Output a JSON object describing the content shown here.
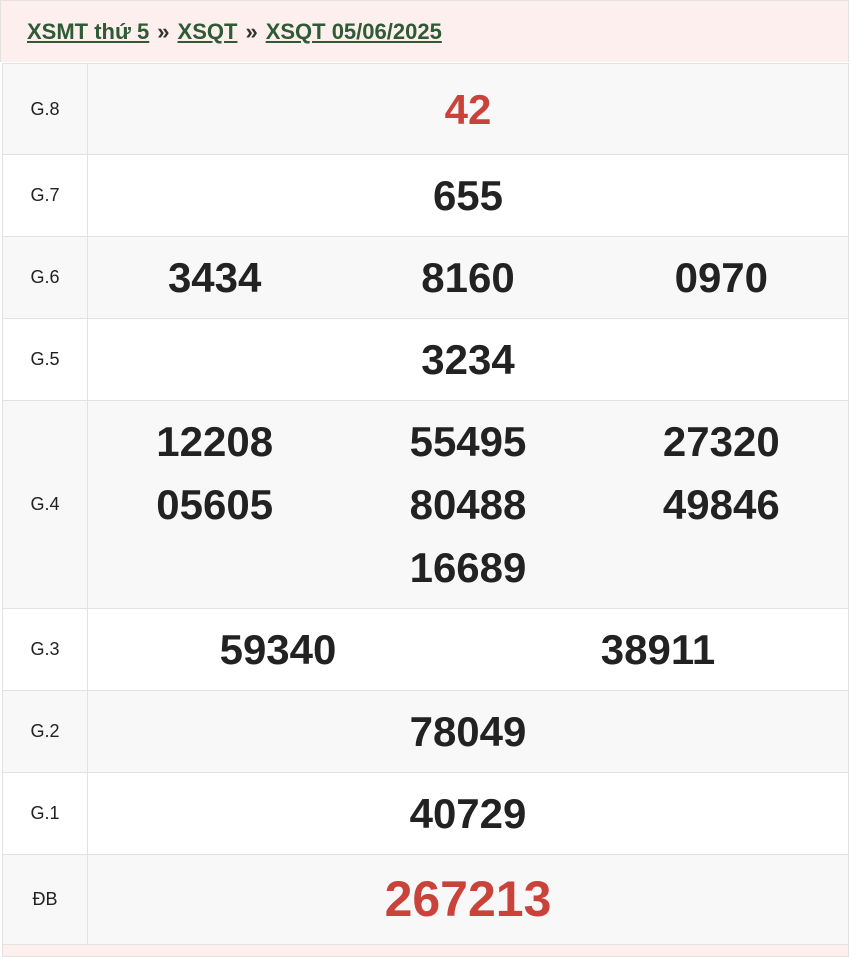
{
  "breadcrumb": {
    "items": [
      "XSMT thứ 5",
      "XSQT",
      "XSQT 05/06/2025"
    ],
    "separator": "»"
  },
  "colors": {
    "link": "#2e5a34",
    "highlight": "#c9433a",
    "header_bg": "#fcefee"
  },
  "prizes": [
    {
      "label": "G.8",
      "numbers": [
        "42"
      ]
    },
    {
      "label": "G.7",
      "numbers": [
        "655"
      ]
    },
    {
      "label": "G.6",
      "numbers": [
        "3434",
        "8160",
        "0970"
      ]
    },
    {
      "label": "G.5",
      "numbers": [
        "3234"
      ]
    },
    {
      "label": "G.4",
      "numbers": [
        "12208",
        "55495",
        "27320",
        "05605",
        "80488",
        "49846",
        "16689"
      ]
    },
    {
      "label": "G.3",
      "numbers": [
        "59340",
        "38911"
      ]
    },
    {
      "label": "G.2",
      "numbers": [
        "78049"
      ]
    },
    {
      "label": "G.1",
      "numbers": [
        "40729"
      ]
    },
    {
      "label": "ĐB",
      "numbers": [
        "267213"
      ]
    }
  ]
}
